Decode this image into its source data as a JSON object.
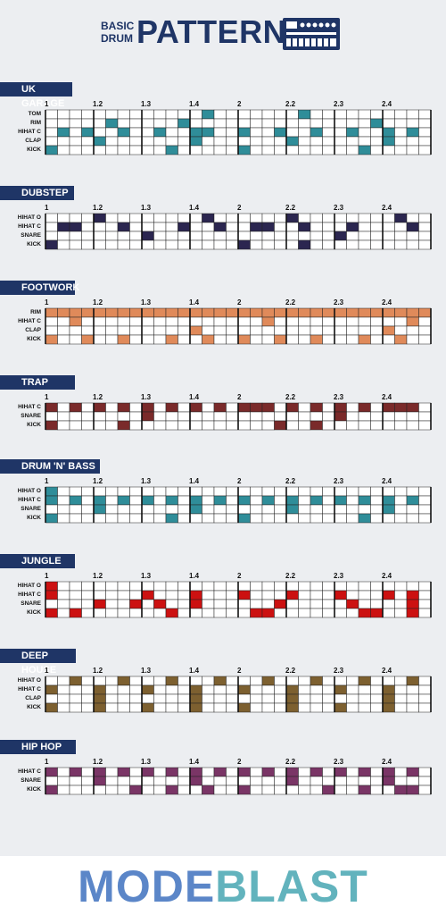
{
  "title": {
    "line1": "BASIC",
    "line2": "DRUM",
    "main": "PATTERNS"
  },
  "beat_labels": [
    "1",
    "1.2",
    "1.3",
    "1.4",
    "2",
    "2.2",
    "2.3",
    "2.4"
  ],
  "footer": {
    "logo_part1": "MODE",
    "logo_part2": "BLAST"
  },
  "sections": [
    {
      "name": "UK GARAGE",
      "color": "#2f8d99",
      "rows": [
        {
          "label": "TOM",
          "steps": [
            0,
            0,
            0,
            0,
            0,
            0,
            0,
            0,
            0,
            0,
            0,
            0,
            0,
            1,
            0,
            0,
            0,
            0,
            0,
            0,
            0,
            1,
            0,
            0,
            0,
            0,
            0,
            0,
            0,
            0,
            0,
            0
          ]
        },
        {
          "label": "RIM",
          "steps": [
            0,
            0,
            0,
            0,
            0,
            1,
            0,
            0,
            0,
            0,
            0,
            1,
            0,
            0,
            0,
            0,
            0,
            0,
            0,
            0,
            0,
            0,
            0,
            0,
            0,
            0,
            0,
            1,
            0,
            0,
            0,
            0
          ]
        },
        {
          "label": "HIHAT C",
          "steps": [
            0,
            1,
            0,
            1,
            0,
            0,
            1,
            0,
            0,
            1,
            0,
            0,
            1,
            1,
            0,
            0,
            1,
            0,
            0,
            1,
            0,
            0,
            1,
            0,
            0,
            1,
            0,
            0,
            1,
            0,
            1,
            0
          ]
        },
        {
          "label": "CLAP",
          "steps": [
            0,
            0,
            0,
            0,
            1,
            0,
            0,
            0,
            0,
            0,
            0,
            0,
            1,
            0,
            0,
            0,
            0,
            0,
            0,
            0,
            1,
            0,
            0,
            0,
            0,
            0,
            0,
            0,
            1,
            0,
            0,
            0
          ]
        },
        {
          "label": "KICK",
          "steps": [
            1,
            0,
            0,
            0,
            0,
            0,
            0,
            0,
            0,
            0,
            1,
            0,
            0,
            0,
            0,
            0,
            1,
            0,
            0,
            0,
            0,
            0,
            0,
            0,
            0,
            0,
            1,
            0,
            0,
            0,
            0,
            0
          ]
        }
      ]
    },
    {
      "name": "DUBSTEP",
      "color": "#2b2650",
      "rows": [
        {
          "label": "HIHAT O",
          "steps": [
            0,
            0,
            0,
            0,
            1,
            0,
            0,
            0,
            0,
            0,
            0,
            0,
            0,
            1,
            0,
            0,
            0,
            0,
            0,
            0,
            1,
            0,
            0,
            0,
            0,
            0,
            0,
            0,
            0,
            1,
            0,
            0
          ]
        },
        {
          "label": "HIHAT C",
          "steps": [
            0,
            1,
            1,
            0,
            0,
            0,
            1,
            0,
            0,
            0,
            0,
            1,
            0,
            0,
            1,
            0,
            0,
            1,
            1,
            0,
            0,
            1,
            0,
            0,
            0,
            1,
            0,
            0,
            0,
            0,
            1,
            0
          ]
        },
        {
          "label": "SNARE",
          "steps": [
            0,
            0,
            0,
            0,
            0,
            0,
            0,
            0,
            1,
            0,
            0,
            0,
            0,
            0,
            0,
            0,
            0,
            0,
            0,
            0,
            0,
            0,
            0,
            0,
            1,
            0,
            0,
            0,
            0,
            0,
            0,
            0
          ]
        },
        {
          "label": "KICK",
          "steps": [
            1,
            0,
            0,
            0,
            0,
            0,
            0,
            0,
            0,
            0,
            0,
            0,
            0,
            0,
            0,
            0,
            1,
            0,
            0,
            0,
            0,
            1,
            0,
            0,
            0,
            0,
            0,
            0,
            0,
            0,
            0,
            0
          ]
        }
      ]
    },
    {
      "name": "FOOTWORK",
      "color": "#e08a5a",
      "rows": [
        {
          "label": "RIM",
          "steps": [
            1,
            1,
            1,
            1,
            1,
            1,
            1,
            1,
            1,
            1,
            1,
            1,
            1,
            1,
            1,
            1,
            1,
            1,
            1,
            1,
            1,
            1,
            1,
            1,
            1,
            1,
            1,
            1,
            1,
            1,
            1,
            1
          ]
        },
        {
          "label": "HIHAT C",
          "steps": [
            0,
            0,
            1,
            0,
            0,
            0,
            0,
            0,
            0,
            0,
            0,
            0,
            0,
            0,
            0,
            0,
            0,
            0,
            1,
            0,
            0,
            0,
            0,
            0,
            0,
            0,
            0,
            0,
            0,
            0,
            1,
            0
          ]
        },
        {
          "label": "CLAP",
          "steps": [
            0,
            0,
            0,
            0,
            0,
            0,
            0,
            0,
            0,
            0,
            0,
            0,
            1,
            0,
            0,
            0,
            0,
            0,
            0,
            0,
            0,
            0,
            0,
            0,
            0,
            0,
            0,
            0,
            1,
            0,
            0,
            0
          ]
        },
        {
          "label": "KICK",
          "steps": [
            1,
            0,
            0,
            1,
            0,
            0,
            1,
            0,
            0,
            0,
            1,
            0,
            0,
            1,
            0,
            0,
            1,
            0,
            0,
            1,
            0,
            0,
            1,
            0,
            0,
            0,
            1,
            0,
            0,
            1,
            0,
            0
          ]
        }
      ]
    },
    {
      "name": "TRAP",
      "color": "#7a2a2a",
      "rows": [
        {
          "label": "HIHAT C",
          "steps": [
            1,
            0,
            1,
            0,
            1,
            0,
            1,
            0,
            1,
            0,
            1,
            0,
            1,
            0,
            1,
            0,
            1,
            1,
            1,
            0,
            1,
            0,
            1,
            0,
            1,
            0,
            1,
            0,
            1,
            1,
            1,
            0
          ]
        },
        {
          "label": "SNARE",
          "steps": [
            0,
            0,
            0,
            0,
            0,
            0,
            0,
            0,
            1,
            0,
            0,
            0,
            0,
            0,
            0,
            0,
            0,
            0,
            0,
            0,
            0,
            0,
            0,
            0,
            1,
            0,
            0,
            0,
            0,
            0,
            0,
            0
          ]
        },
        {
          "label": "KICK",
          "steps": [
            1,
            0,
            0,
            0,
            0,
            0,
            1,
            0,
            0,
            0,
            0,
            0,
            0,
            0,
            0,
            0,
            0,
            0,
            0,
            1,
            0,
            0,
            1,
            0,
            0,
            0,
            0,
            0,
            0,
            0,
            0,
            0
          ]
        }
      ]
    },
    {
      "name": "DRUM 'N' BASS",
      "color": "#2f8d99",
      "rows": [
        {
          "label": "HIHAT O",
          "steps": [
            1,
            0,
            0,
            0,
            0,
            0,
            0,
            0,
            0,
            0,
            0,
            0,
            0,
            0,
            0,
            0,
            0,
            0,
            0,
            0,
            0,
            0,
            0,
            0,
            0,
            0,
            0,
            0,
            0,
            0,
            0,
            0
          ]
        },
        {
          "label": "HIHAT C",
          "steps": [
            1,
            0,
            1,
            0,
            1,
            0,
            1,
            0,
            1,
            0,
            1,
            0,
            1,
            0,
            1,
            0,
            1,
            0,
            1,
            0,
            1,
            0,
            1,
            0,
            1,
            0,
            1,
            0,
            1,
            0,
            1,
            0
          ]
        },
        {
          "label": "SNARE",
          "steps": [
            0,
            0,
            0,
            0,
            1,
            0,
            0,
            0,
            0,
            0,
            0,
            0,
            1,
            0,
            0,
            0,
            0,
            0,
            0,
            0,
            1,
            0,
            0,
            0,
            0,
            0,
            0,
            0,
            1,
            0,
            0,
            0
          ]
        },
        {
          "label": "KICK",
          "steps": [
            1,
            0,
            0,
            0,
            0,
            0,
            0,
            0,
            0,
            0,
            1,
            0,
            0,
            0,
            0,
            0,
            1,
            0,
            0,
            0,
            0,
            0,
            0,
            0,
            0,
            0,
            1,
            0,
            0,
            0,
            0,
            0
          ]
        }
      ]
    },
    {
      "name": "JUNGLE",
      "color": "#cc1111",
      "rows": [
        {
          "label": "HIHAT O",
          "steps": [
            1,
            0,
            0,
            0,
            0,
            0,
            0,
            0,
            0,
            0,
            0,
            0,
            0,
            0,
            0,
            0,
            0,
            0,
            0,
            0,
            0,
            0,
            0,
            0,
            0,
            0,
            0,
            0,
            0,
            0,
            0,
            0
          ]
        },
        {
          "label": "HIHAT C",
          "steps": [
            1,
            0,
            0,
            0,
            0,
            0,
            0,
            0,
            1,
            0,
            0,
            0,
            1,
            0,
            0,
            0,
            1,
            0,
            0,
            0,
            1,
            0,
            0,
            0,
            1,
            0,
            0,
            0,
            1,
            0,
            1,
            0
          ]
        },
        {
          "label": "SNARE",
          "steps": [
            0,
            0,
            0,
            0,
            1,
            0,
            0,
            1,
            0,
            1,
            0,
            0,
            1,
            0,
            0,
            0,
            0,
            0,
            0,
            1,
            0,
            0,
            0,
            0,
            0,
            1,
            0,
            0,
            0,
            0,
            1,
            0
          ]
        },
        {
          "label": "KICK",
          "steps": [
            1,
            0,
            1,
            0,
            0,
            0,
            0,
            0,
            0,
            0,
            1,
            0,
            0,
            0,
            0,
            0,
            0,
            1,
            1,
            0,
            0,
            0,
            0,
            0,
            0,
            0,
            1,
            1,
            0,
            0,
            1,
            0
          ]
        }
      ]
    },
    {
      "name": "DEEP HOUSE",
      "color": "#7d6030",
      "rows": [
        {
          "label": "HIHAT O",
          "steps": [
            0,
            0,
            1,
            0,
            0,
            0,
            1,
            0,
            0,
            0,
            1,
            0,
            0,
            0,
            1,
            0,
            0,
            0,
            1,
            0,
            0,
            0,
            1,
            0,
            0,
            0,
            1,
            0,
            0,
            0,
            1,
            0
          ]
        },
        {
          "label": "HIHAT C",
          "steps": [
            1,
            0,
            0,
            0,
            1,
            0,
            0,
            0,
            1,
            0,
            0,
            0,
            1,
            0,
            0,
            0,
            1,
            0,
            0,
            0,
            1,
            0,
            0,
            0,
            1,
            0,
            0,
            0,
            1,
            0,
            0,
            0
          ]
        },
        {
          "label": "CLAP",
          "steps": [
            0,
            0,
            0,
            0,
            1,
            0,
            0,
            0,
            0,
            0,
            0,
            0,
            1,
            0,
            0,
            0,
            0,
            0,
            0,
            0,
            1,
            0,
            0,
            0,
            0,
            0,
            0,
            0,
            1,
            0,
            0,
            0
          ]
        },
        {
          "label": "KICK",
          "steps": [
            1,
            0,
            0,
            0,
            1,
            0,
            0,
            0,
            1,
            0,
            0,
            0,
            1,
            0,
            0,
            0,
            1,
            0,
            0,
            0,
            1,
            0,
            0,
            0,
            1,
            0,
            0,
            0,
            1,
            0,
            0,
            0
          ]
        }
      ]
    },
    {
      "name": "HIP HOP",
      "color": "#7a3566",
      "rows": [
        {
          "label": "HIHAT C",
          "steps": [
            1,
            0,
            1,
            0,
            1,
            0,
            1,
            0,
            1,
            0,
            1,
            0,
            1,
            0,
            1,
            0,
            1,
            0,
            1,
            0,
            1,
            0,
            1,
            0,
            1,
            0,
            1,
            0,
            1,
            0,
            1,
            0
          ]
        },
        {
          "label": "SNARE",
          "steps": [
            0,
            0,
            0,
            0,
            1,
            0,
            0,
            0,
            0,
            0,
            0,
            0,
            1,
            0,
            0,
            0,
            0,
            0,
            0,
            0,
            1,
            0,
            0,
            0,
            0,
            0,
            0,
            0,
            1,
            0,
            0,
            0
          ]
        },
        {
          "label": "KICK",
          "steps": [
            1,
            0,
            0,
            0,
            0,
            0,
            0,
            1,
            0,
            0,
            1,
            0,
            0,
            1,
            0,
            0,
            1,
            0,
            0,
            0,
            0,
            0,
            0,
            1,
            0,
            0,
            1,
            0,
            0,
            1,
            1,
            0
          ]
        }
      ]
    }
  ]
}
